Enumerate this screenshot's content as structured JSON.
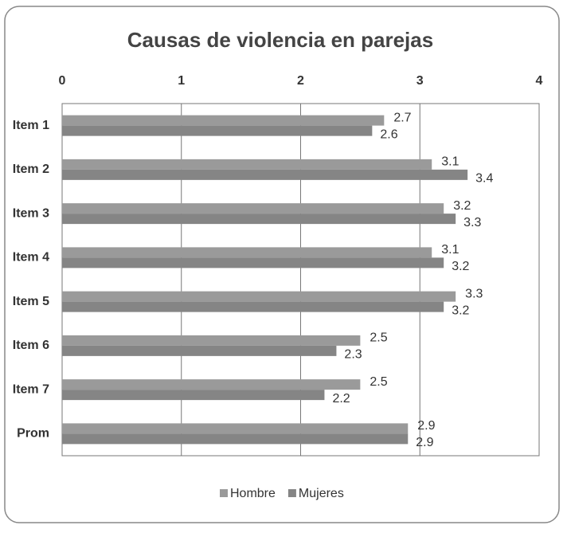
{
  "chart_data": {
    "type": "hbar",
    "title": "Causas de violencia en parejas",
    "categories": [
      "Item 1",
      "Item 2",
      "Item 3",
      "Item 4",
      "Item 5",
      "Item 6",
      "Item 7",
      "Prom"
    ],
    "series": [
      {
        "name": "Hombre",
        "color": "#9a9a9a",
        "values": [
          2.7,
          3.1,
          3.2,
          3.1,
          3.3,
          2.5,
          2.5,
          2.9
        ]
      },
      {
        "name": "Mujeres",
        "color": "#858585",
        "values": [
          2.6,
          3.4,
          3.3,
          3.2,
          3.2,
          2.3,
          2.2,
          2.9
        ]
      }
    ],
    "xlim": [
      0,
      4
    ],
    "xticks": [
      0,
      1,
      2,
      3,
      4
    ],
    "grid": true,
    "legend": "bottom"
  }
}
